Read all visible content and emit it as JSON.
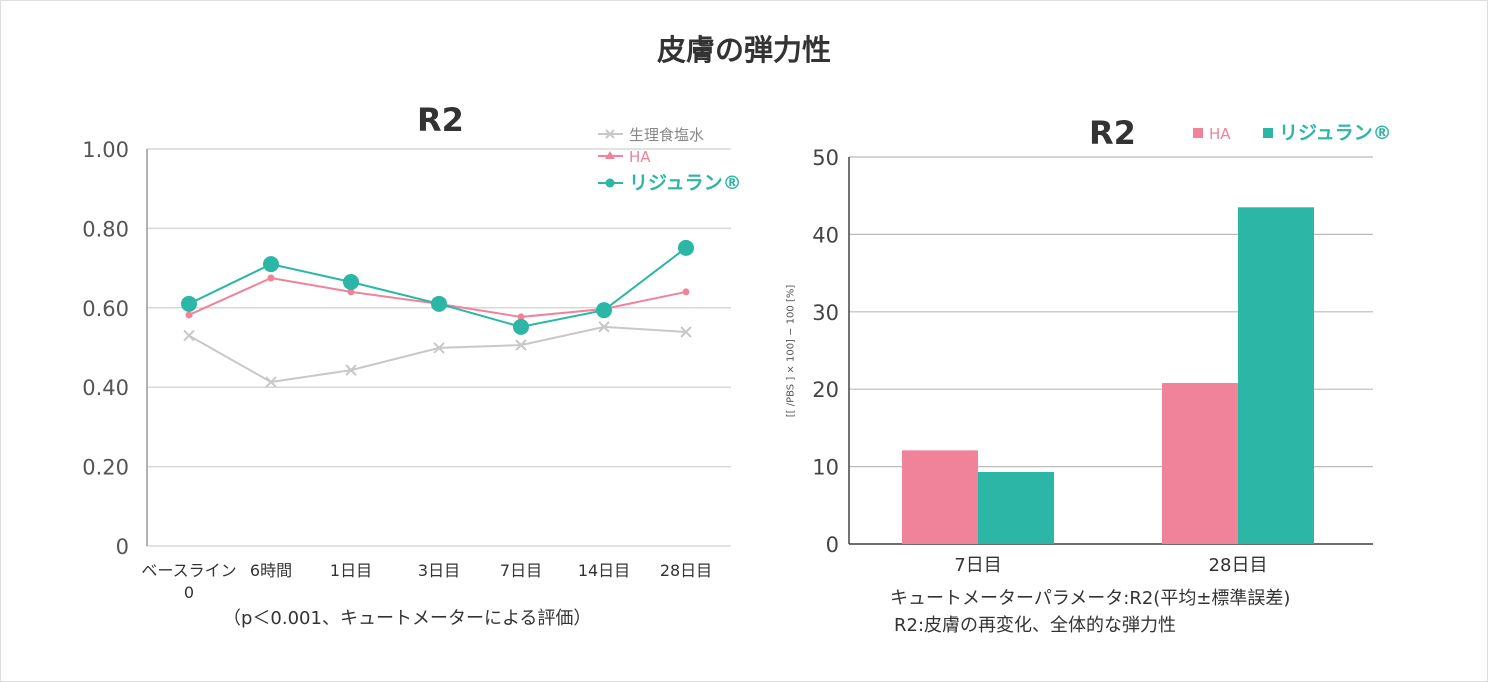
{
  "title": "皮膚の弾力性",
  "chart_data": [
    {
      "type": "line",
      "title": "R2",
      "categories": [
        "ベースライン\n0",
        "6時間",
        "1日目",
        "3日目",
        "7日目",
        "14日目",
        "28日目"
      ],
      "category_labels": [
        "ベースライン",
        "0",
        "6時間",
        "1日目",
        "3日目",
        "7日目",
        "14日目",
        "28日目"
      ],
      "yticks": [
        "0",
        "0.20",
        "0.40",
        "0.60",
        "0.80",
        "1.00"
      ],
      "ylim": [
        0,
        1.0
      ],
      "grid": true,
      "legend_position": "top-right",
      "note": "（p＜0.001、キュートメーターによる評価）",
      "series": [
        {
          "name": "生理食塩水",
          "color": "#c8c8c8",
          "marker": "x",
          "values": [
            0.53,
            0.413,
            0.443,
            0.499,
            0.506,
            0.552,
            0.539
          ]
        },
        {
          "name": "HA",
          "color": "#f08399",
          "marker": "triangle",
          "values": [
            0.582,
            0.675,
            0.64,
            0.61,
            0.577,
            0.597,
            0.64
          ]
        },
        {
          "name": "リジュラン®",
          "color": "#2bb6a6",
          "marker": "circle",
          "values": [
            0.61,
            0.71,
            0.665,
            0.61,
            0.552,
            0.594,
            0.751
          ]
        }
      ]
    },
    {
      "type": "bar",
      "title": "R2",
      "categories": [
        "7日目",
        "28日目"
      ],
      "ylabel": "[[ /PBS ] × 100] − 100 [%]",
      "yticks": [
        "0",
        "10",
        "20",
        "30",
        "40",
        "50"
      ],
      "ylim": [
        0,
        50
      ],
      "grid": true,
      "legend_position": "top-right",
      "caption": [
        "キュートメーターパラメータ:R2(平均±標準誤差)",
        "R2:皮膚の再変化、全体的な弾力性"
      ],
      "series": [
        {
          "name": "HA",
          "color": "#f08399",
          "values": [
            12.1,
            20.8
          ]
        },
        {
          "name": "リジュラン®",
          "color": "#2bb6a6",
          "values": [
            9.3,
            43.5
          ]
        }
      ]
    }
  ]
}
